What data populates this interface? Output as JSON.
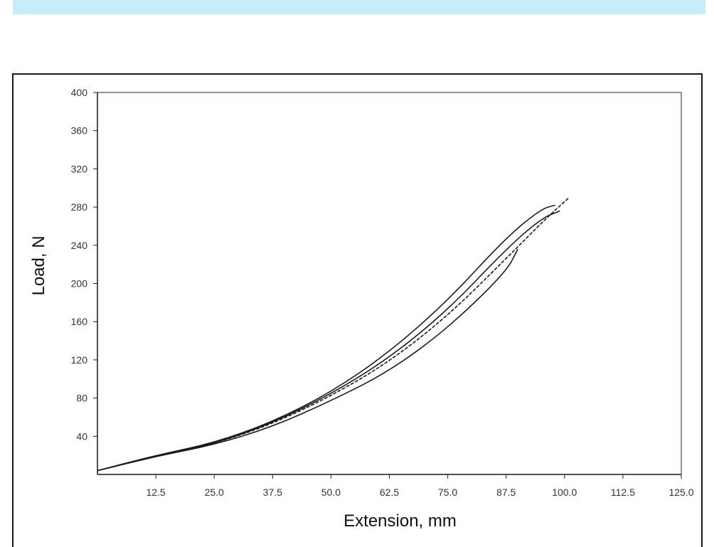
{
  "colors": {
    "top_band": "#c8ecf8",
    "frame": "#1a1a1a",
    "plot_border": "#7a3a3a",
    "axis": "#222222",
    "curve": "#1a1a1a"
  },
  "chart_data": {
    "type": "line",
    "xlabel": "Extension, mm",
    "ylabel": "Load, N",
    "xlim": [
      0,
      125
    ],
    "ylim": [
      0,
      400
    ],
    "x_ticks": [
      "12.5",
      "25.0",
      "37.5",
      "50.0",
      "62.5",
      "75.0",
      "87.5",
      "100.0",
      "112.5",
      "125.0"
    ],
    "y_ticks": [
      "40",
      "80",
      "120",
      "160",
      "200",
      "240",
      "280",
      "320",
      "360",
      "400"
    ],
    "grid": false,
    "legend": "none",
    "series": [
      {
        "x": [
          0,
          12.5,
          25,
          37.5,
          50,
          62.5,
          75,
          87.5,
          95,
          98
        ],
        "y": [
          4,
          20,
          33,
          55,
          86,
          128,
          182,
          248,
          278,
          282
        ]
      },
      {
        "x": [
          0,
          12.5,
          25,
          37.5,
          50,
          62.5,
          75,
          87.5,
          95,
          99
        ],
        "y": [
          4,
          19,
          32,
          54,
          84,
          122,
          172,
          236,
          268,
          276
        ]
      },
      {
        "x": [
          0,
          12.5,
          25,
          37.5,
          50,
          62.5,
          75,
          87.5,
          96,
          101
        ],
        "y": [
          4,
          19,
          32,
          53,
          82,
          118,
          166,
          226,
          268,
          290
        ]
      },
      {
        "x": [
          0,
          12.5,
          25,
          37.5,
          50,
          62.5,
          75,
          87.5,
          90
        ],
        "y": [
          4,
          19,
          31,
          50,
          77,
          108,
          153,
          212,
          236
        ]
      }
    ]
  }
}
